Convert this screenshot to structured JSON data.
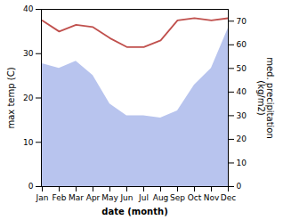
{
  "chart_data": {
    "type": "line",
    "categories": [
      "Jan",
      "Feb",
      "Mar",
      "Apr",
      "May",
      "Jun",
      "Jul",
      "Aug",
      "Sep",
      "Oct",
      "Nov",
      "Dec"
    ],
    "series": [
      {
        "type": "area",
        "axis": "y2",
        "color": "#b8c4ee",
        "values": [
          52,
          50,
          53,
          47,
          35,
          30,
          30,
          29,
          32,
          43,
          50,
          67
        ]
      },
      {
        "type": "line",
        "color": "#c0504d",
        "values": [
          37.5,
          35.0,
          36.5,
          36.0,
          33.5,
          31.5,
          31.5,
          33.0,
          37.5,
          38.0,
          37.5,
          38.0
        ]
      }
    ],
    "xlabel": "date (month)",
    "ylabel": "max temp (C)",
    "y2label": "med. precipitation\n(kg/m2)",
    "ylim": [
      0,
      40
    ],
    "yticks": [
      0,
      10,
      20,
      30,
      40
    ],
    "y2lim": [
      0,
      75
    ],
    "y2ticks": [
      0,
      10,
      20,
      30,
      40,
      50,
      60,
      70
    ]
  }
}
